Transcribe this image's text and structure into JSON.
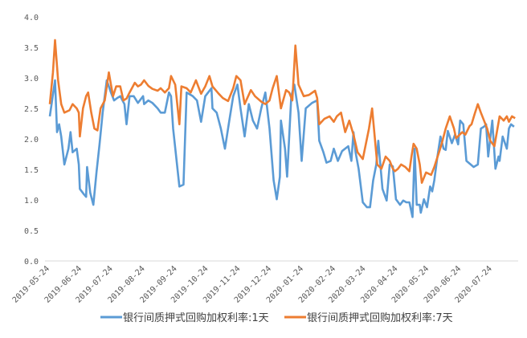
{
  "chart_data": {
    "type": "line",
    "title": "",
    "xlabel": "",
    "ylabel": "",
    "x_unit": "days since 2019-05-24",
    "xlim": [
      0,
      450
    ],
    "ylim": [
      0,
      4.0
    ],
    "grid": false,
    "legend_position": "bottom",
    "y_ticks": [
      "0.0",
      "0.5",
      "1.0",
      "1.5",
      "2.0",
      "2.5",
      "3.0",
      "3.5",
      "4.0"
    ],
    "x_ticks": [
      {
        "day": 0,
        "label": "2019-05-24"
      },
      {
        "day": 31,
        "label": "2019-06-24"
      },
      {
        "day": 61,
        "label": "2019-07-24"
      },
      {
        "day": 92,
        "label": "2019-08-24"
      },
      {
        "day": 123,
        "label": "2019-09-24"
      },
      {
        "day": 153,
        "label": "2019-10-24"
      },
      {
        "day": 184,
        "label": "2019-11-24"
      },
      {
        "day": 214,
        "label": "2019-12-24"
      },
      {
        "day": 245,
        "label": "2020-01-24"
      },
      {
        "day": 276,
        "label": "2020-02-24"
      },
      {
        "day": 305,
        "label": "2020-03-24"
      },
      {
        "day": 336,
        "label": "2020-04-24"
      },
      {
        "day": 366,
        "label": "2020-05-24"
      },
      {
        "day": 397,
        "label": "2020-06-24"
      },
      {
        "day": 427,
        "label": "2020-07-24"
      }
    ],
    "series": [
      {
        "name": "银行间质押式回购加权利率:1天",
        "color": "#5b9bd5",
        "points": [
          [
            0,
            2.37
          ],
          [
            5,
            2.96
          ],
          [
            7,
            2.11
          ],
          [
            9,
            2.24
          ],
          [
            11,
            2.04
          ],
          [
            14,
            1.58
          ],
          [
            18,
            1.84
          ],
          [
            20,
            2.11
          ],
          [
            22,
            1.78
          ],
          [
            26,
            1.84
          ],
          [
            28,
            1.58
          ],
          [
            29,
            1.18
          ],
          [
            33,
            1.09
          ],
          [
            35,
            1.05
          ],
          [
            36,
            1.54
          ],
          [
            39,
            1.12
          ],
          [
            42,
            0.92
          ],
          [
            45,
            1.45
          ],
          [
            48,
            1.91
          ],
          [
            51,
            2.43
          ],
          [
            55,
            2.96
          ],
          [
            59,
            2.76
          ],
          [
            62,
            2.63
          ],
          [
            65,
            2.67
          ],
          [
            68,
            2.7
          ],
          [
            72,
            2.57
          ],
          [
            74,
            2.24
          ],
          [
            77,
            2.7
          ],
          [
            81,
            2.7
          ],
          [
            85,
            2.59
          ],
          [
            90,
            2.7
          ],
          [
            91,
            2.57
          ],
          [
            95,
            2.63
          ],
          [
            99,
            2.59
          ],
          [
            104,
            2.5
          ],
          [
            107,
            2.43
          ],
          [
            111,
            2.43
          ],
          [
            115,
            2.76
          ],
          [
            117,
            2.7
          ],
          [
            119,
            2.17
          ],
          [
            125,
            1.22
          ],
          [
            129,
            1.25
          ],
          [
            132,
            2.76
          ],
          [
            138,
            2.7
          ],
          [
            142,
            2.63
          ],
          [
            146,
            2.28
          ],
          [
            150,
            2.7
          ],
          [
            156,
            2.83
          ],
          [
            157,
            2.5
          ],
          [
            161,
            2.43
          ],
          [
            165,
            2.17
          ],
          [
            169,
            1.84
          ],
          [
            173,
            2.28
          ],
          [
            177,
            2.7
          ],
          [
            181,
            2.89
          ],
          [
            184,
            2.5
          ],
          [
            188,
            2.04
          ],
          [
            192,
            2.57
          ],
          [
            196,
            2.3
          ],
          [
            200,
            2.17
          ],
          [
            204,
            2.5
          ],
          [
            208,
            2.76
          ],
          [
            212,
            2.17
          ],
          [
            216,
            1.32
          ],
          [
            219,
            1.01
          ],
          [
            222,
            1.38
          ],
          [
            223,
            2.3
          ],
          [
            227,
            1.84
          ],
          [
            229,
            1.38
          ],
          [
            233,
            2.7
          ],
          [
            236,
            2.89
          ],
          [
            240,
            2.43
          ],
          [
            243,
            1.64
          ],
          [
            247,
            2.5
          ],
          [
            253,
            2.59
          ],
          [
            258,
            2.63
          ],
          [
            260,
            1.97
          ],
          [
            264,
            1.78
          ],
          [
            267,
            1.61
          ],
          [
            271,
            1.64
          ],
          [
            274,
            1.84
          ],
          [
            278,
            1.64
          ],
          [
            282,
            1.8
          ],
          [
            288,
            1.88
          ],
          [
            291,
            1.64
          ],
          [
            293,
            2.11
          ],
          [
            295,
            1.78
          ],
          [
            298,
            1.51
          ],
          [
            302,
            0.96
          ],
          [
            306,
            0.88
          ],
          [
            309,
            0.88
          ],
          [
            312,
            1.32
          ],
          [
            315,
            1.58
          ],
          [
            317,
            1.97
          ],
          [
            321,
            1.18
          ],
          [
            325,
            0.99
          ],
          [
            328,
            1.58
          ],
          [
            331,
            1.55
          ],
          [
            334,
            1.01
          ],
          [
            338,
            0.92
          ],
          [
            341,
            0.99
          ],
          [
            344,
            0.96
          ],
          [
            347,
            0.96
          ],
          [
            350,
            0.72
          ],
          [
            352,
            1.84
          ],
          [
            354,
            0.92
          ],
          [
            357,
            0.92
          ],
          [
            358,
            0.79
          ],
          [
            361,
            1.01
          ],
          [
            364,
            0.88
          ],
          [
            367,
            1.22
          ],
          [
            369,
            1.14
          ],
          [
            371,
            1.32
          ],
          [
            374,
            1.71
          ],
          [
            377,
            2.04
          ],
          [
            380,
            1.84
          ],
          [
            382,
            1.82
          ],
          [
            384,
            2.13
          ],
          [
            388,
            1.93
          ],
          [
            391,
            2.07
          ],
          [
            394,
            1.91
          ],
          [
            396,
            2.3
          ],
          [
            399,
            2.24
          ],
          [
            402,
            1.64
          ],
          [
            409,
            1.54
          ],
          [
            413,
            1.58
          ],
          [
            416,
            2.17
          ],
          [
            419,
            2.2
          ],
          [
            421,
            2.24
          ],
          [
            423,
            1.71
          ],
          [
            427,
            2.3
          ],
          [
            430,
            1.51
          ],
          [
            433,
            1.71
          ],
          [
            434,
            1.64
          ],
          [
            437,
            2.04
          ],
          [
            441,
            1.84
          ],
          [
            443,
            2.17
          ],
          [
            445,
            2.24
          ],
          [
            448,
            2.2
          ]
        ]
      },
      {
        "name": "银行间质押式回购加权利率:7天",
        "color": "#ed7d31",
        "points": [
          [
            0,
            2.57
          ],
          [
            3,
            3.09
          ],
          [
            5,
            3.62
          ],
          [
            8,
            2.96
          ],
          [
            11,
            2.57
          ],
          [
            14,
            2.43
          ],
          [
            19,
            2.47
          ],
          [
            22,
            2.57
          ],
          [
            26,
            2.5
          ],
          [
            28,
            2.43
          ],
          [
            29,
            2.04
          ],
          [
            32,
            2.5
          ],
          [
            35,
            2.7
          ],
          [
            37,
            2.76
          ],
          [
            40,
            2.43
          ],
          [
            43,
            2.17
          ],
          [
            46,
            2.14
          ],
          [
            49,
            2.5
          ],
          [
            53,
            2.63
          ],
          [
            57,
            3.09
          ],
          [
            59,
            2.89
          ],
          [
            61,
            2.7
          ],
          [
            64,
            2.86
          ],
          [
            68,
            2.86
          ],
          [
            71,
            2.63
          ],
          [
            74,
            2.66
          ],
          [
            77,
            2.76
          ],
          [
            82,
            2.92
          ],
          [
            85,
            2.86
          ],
          [
            88,
            2.89
          ],
          [
            91,
            2.96
          ],
          [
            95,
            2.87
          ],
          [
            99,
            2.82
          ],
          [
            104,
            2.79
          ],
          [
            107,
            2.83
          ],
          [
            111,
            2.76
          ],
          [
            115,
            2.83
          ],
          [
            117,
            3.03
          ],
          [
            121,
            2.89
          ],
          [
            125,
            2.24
          ],
          [
            127,
            2.86
          ],
          [
            132,
            2.83
          ],
          [
            136,
            2.76
          ],
          [
            141,
            2.96
          ],
          [
            146,
            2.74
          ],
          [
            150,
            2.86
          ],
          [
            154,
            3.03
          ],
          [
            157,
            2.86
          ],
          [
            163,
            2.74
          ],
          [
            167,
            2.67
          ],
          [
            172,
            2.62
          ],
          [
            177,
            2.83
          ],
          [
            180,
            3.03
          ],
          [
            184,
            2.96
          ],
          [
            188,
            2.57
          ],
          [
            194,
            2.8
          ],
          [
            198,
            2.7
          ],
          [
            204,
            2.61
          ],
          [
            208,
            2.57
          ],
          [
            212,
            2.63
          ],
          [
            215,
            2.83
          ],
          [
            219,
            3.03
          ],
          [
            223,
            2.5
          ],
          [
            228,
            2.8
          ],
          [
            231,
            2.76
          ],
          [
            234,
            2.63
          ],
          [
            237,
            3.53
          ],
          [
            240,
            2.89
          ],
          [
            245,
            2.7
          ],
          [
            250,
            2.72
          ],
          [
            256,
            2.79
          ],
          [
            258,
            2.67
          ],
          [
            260,
            2.24
          ],
          [
            265,
            2.33
          ],
          [
            270,
            2.37
          ],
          [
            274,
            2.28
          ],
          [
            277,
            2.37
          ],
          [
            281,
            2.43
          ],
          [
            285,
            2.11
          ],
          [
            289,
            2.3
          ],
          [
            293,
            2.07
          ],
          [
            297,
            1.78
          ],
          [
            302,
            1.67
          ],
          [
            308,
            2.17
          ],
          [
            311,
            2.5
          ],
          [
            316,
            1.58
          ],
          [
            320,
            1.51
          ],
          [
            324,
            1.71
          ],
          [
            328,
            1.64
          ],
          [
            331,
            1.51
          ],
          [
            333,
            1.47
          ],
          [
            336,
            1.51
          ],
          [
            339,
            1.58
          ],
          [
            343,
            1.54
          ],
          [
            347,
            1.47
          ],
          [
            349,
            1.71
          ],
          [
            351,
            1.92
          ],
          [
            354,
            1.84
          ],
          [
            357,
            1.58
          ],
          [
            359,
            1.28
          ],
          [
            363,
            1.45
          ],
          [
            368,
            1.41
          ],
          [
            371,
            1.54
          ],
          [
            374,
            1.7
          ],
          [
            378,
            1.91
          ],
          [
            382,
            2.17
          ],
          [
            386,
            2.37
          ],
          [
            390,
            2.17
          ],
          [
            392,
            2.01
          ],
          [
            398,
            2.11
          ],
          [
            401,
            2.07
          ],
          [
            405,
            2.21
          ],
          [
            407,
            2.24
          ],
          [
            410,
            2.41
          ],
          [
            413,
            2.57
          ],
          [
            416,
            2.43
          ],
          [
            419,
            2.3
          ],
          [
            422,
            2.17
          ],
          [
            425,
            1.97
          ],
          [
            429,
            1.88
          ],
          [
            434,
            2.37
          ],
          [
            438,
            2.3
          ],
          [
            441,
            2.37
          ],
          [
            443,
            2.28
          ],
          [
            446,
            2.37
          ],
          [
            449,
            2.34
          ]
        ]
      }
    ]
  }
}
